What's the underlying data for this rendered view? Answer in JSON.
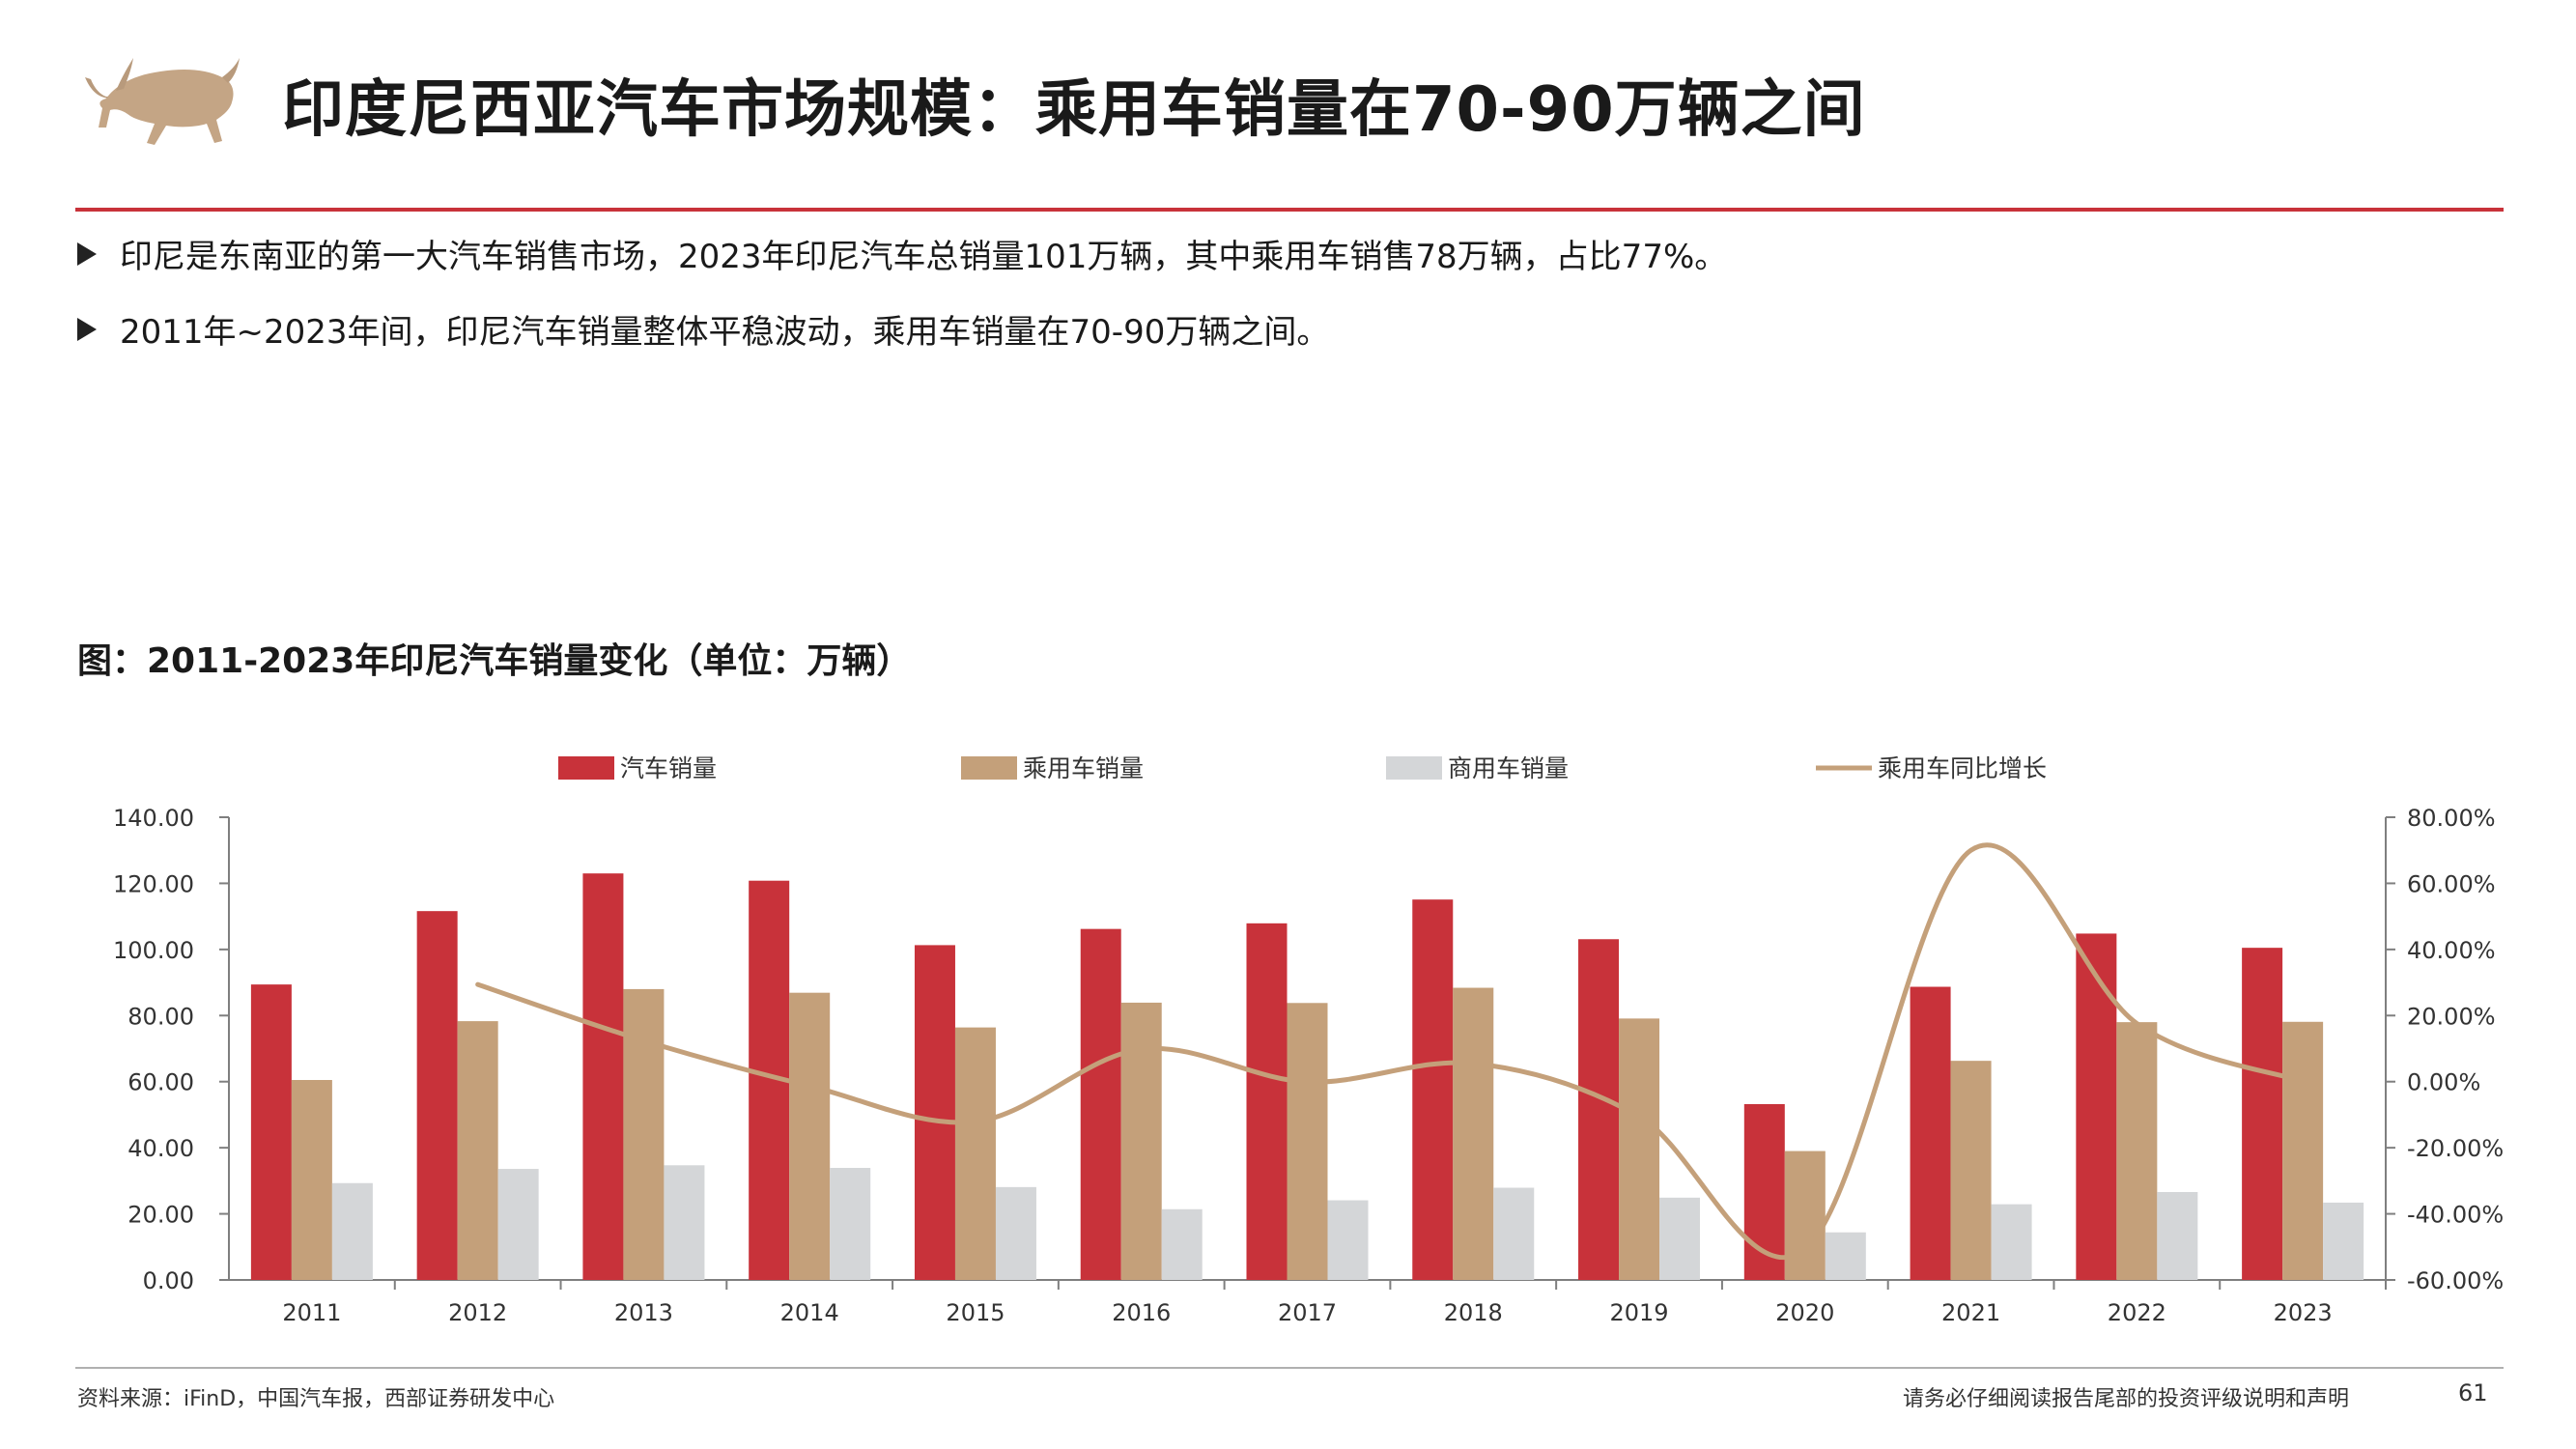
{
  "header": {
    "title": "印度尼西亚汽车市场规模：乘用车销量在70-90万辆之间"
  },
  "bullets": [
    "印尼是东南亚的第一大汽车销售市场，2023年印尼汽车总销量101万辆，其中乘用车销售78万辆，占比77%。",
    "2011年~2023年间，印尼汽车销量整体平稳波动，乘用车销量在70-90万辆之间。"
  ],
  "figure": {
    "title": "图：2011-2023年印尼汽车销量变化（单位：万辆）"
  },
  "chart_data": {
    "type": "bar",
    "categories": [
      "2011",
      "2012",
      "2013",
      "2014",
      "2015",
      "2016",
      "2017",
      "2018",
      "2019",
      "2020",
      "2021",
      "2022",
      "2023"
    ],
    "series": [
      {
        "name": "汽车销量",
        "type": "bar",
        "axis": "left",
        "color": "#c8323a",
        "values": [
          89.4,
          111.6,
          123.0,
          120.8,
          101.3,
          106.2,
          107.9,
          115.1,
          103.1,
          53.2,
          88.7,
          104.8,
          100.5
        ]
      },
      {
        "name": "乘用车销量",
        "type": "bar",
        "axis": "left",
        "color": "#c4a07a",
        "values": [
          60.5,
          78.3,
          88.0,
          86.9,
          76.4,
          83.9,
          83.8,
          88.4,
          79.1,
          39.0,
          66.3,
          78.0,
          78.1
        ]
      },
      {
        "name": "商用车销量",
        "type": "bar",
        "axis": "left",
        "color": "#d4d6d8",
        "values": [
          29.3,
          33.6,
          34.7,
          33.9,
          28.1,
          21.4,
          24.1,
          27.9,
          24.9,
          14.4,
          22.9,
          26.6,
          23.4
        ]
      },
      {
        "name": "乘用车同比增长",
        "type": "line",
        "axis": "right",
        "color": "#c4a07a",
        "values": [
          null,
          29.4,
          12.4,
          -1.3,
          -12.1,
          9.8,
          -0.1,
          5.5,
          -10.5,
          -50.7,
          70.0,
          17.6,
          0.1
        ]
      }
    ],
    "y_left": {
      "min": 0,
      "max": 140,
      "step": 20,
      "tick_labels": [
        "0.00",
        "20.00",
        "40.00",
        "60.00",
        "80.00",
        "100.00",
        "120.00",
        "140.00"
      ]
    },
    "y_right": {
      "min": -60,
      "max": 80,
      "step": 20,
      "tick_labels": [
        "-60.00%",
        "-40.00%",
        "-20.00%",
        "0.00%",
        "20.00%",
        "40.00%",
        "60.00%",
        "80.00%"
      ]
    },
    "legend_position": "top",
    "grid": false
  },
  "footer": {
    "source": "资料来源：iFinD，中国汽车报，西部证券研发中心",
    "disclaimer": "请务必仔细阅读报告尾部的投资评级说明和声明",
    "page": "61"
  }
}
